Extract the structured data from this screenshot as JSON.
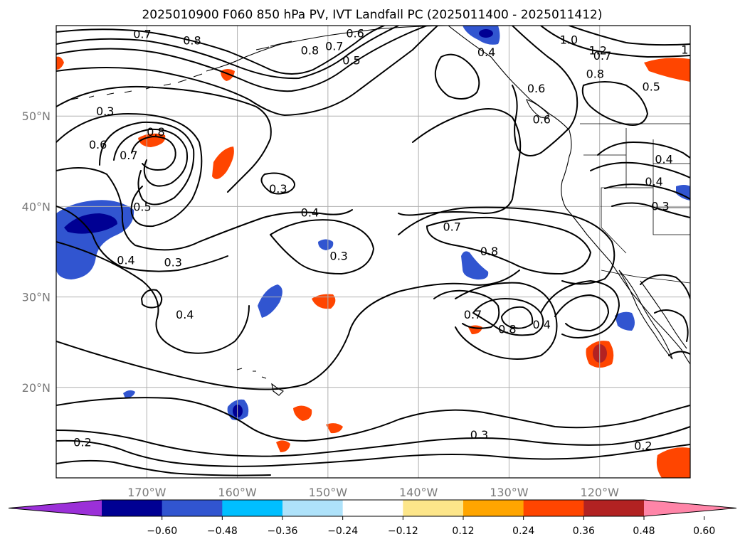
{
  "title": "2025010900 F060 850 hPa PV, IVT Landfall PC (2025011400 - 2025011412)",
  "map": {
    "lon_ticks": [
      {
        "lon": -170,
        "label": "170°W"
      },
      {
        "lon": -160,
        "label": "160°W"
      },
      {
        "lon": -150,
        "label": "150°W"
      },
      {
        "lon": -140,
        "label": "140°W"
      },
      {
        "lon": -130,
        "label": "130°W"
      },
      {
        "lon": -120,
        "label": "120°W"
      }
    ],
    "lat_ticks": [
      {
        "lat": 20,
        "label": "20°N"
      },
      {
        "lat": 30,
        "label": "30°N"
      },
      {
        "lat": 40,
        "label": "40°N"
      },
      {
        "lat": 50,
        "label": "50°N"
      }
    ],
    "extent": {
      "lon_min": -180,
      "lon_max": -110,
      "lat_min": 10,
      "lat_max": 60
    },
    "gridlines": true
  },
  "colorbar": {
    "ticks": [
      "−0.60",
      "−0.48",
      "−0.36",
      "−0.24",
      "−0.12",
      "0.12",
      "0.24",
      "0.36",
      "0.48",
      "0.60"
    ],
    "colors": [
      "#9b30d8",
      "#000093",
      "#3155d0",
      "#00bfff",
      "#aee2fa",
      "#ffffff",
      "#fde68a",
      "#ffa500",
      "#ff4500",
      "#b22222",
      "#ff85a8"
    ]
  },
  "contour_labels": [
    {
      "lon": -170.5,
      "lat": 59.0,
      "text": "0.7"
    },
    {
      "lon": -165.0,
      "lat": 58.3,
      "text": "0.8"
    },
    {
      "lon": -152.0,
      "lat": 57.2,
      "text": "0.8"
    },
    {
      "lon": -149.3,
      "lat": 57.7,
      "text": "0.7"
    },
    {
      "lon": -147.0,
      "lat": 59.1,
      "text": "0.6"
    },
    {
      "lon": -147.4,
      "lat": 56.1,
      "text": "0.5"
    },
    {
      "lon": -174.6,
      "lat": 50.5,
      "text": "0.3"
    },
    {
      "lon": -169.0,
      "lat": 48.2,
      "text": "0.8"
    },
    {
      "lon": -175.4,
      "lat": 46.8,
      "text": "0.6"
    },
    {
      "lon": -172.0,
      "lat": 45.6,
      "text": "0.7"
    },
    {
      "lon": -170.5,
      "lat": 39.9,
      "text": "0.5"
    },
    {
      "lon": -172.3,
      "lat": 34.0,
      "text": "0.4"
    },
    {
      "lon": -167.1,
      "lat": 33.8,
      "text": "0.3"
    },
    {
      "lon": -155.5,
      "lat": 41.9,
      "text": "0.3"
    },
    {
      "lon": -152.0,
      "lat": 39.3,
      "text": "0.4"
    },
    {
      "lon": -148.8,
      "lat": 34.5,
      "text": "0.3"
    },
    {
      "lon": -165.8,
      "lat": 28.0,
      "text": "0.4"
    },
    {
      "lon": -136.3,
      "lat": 37.7,
      "text": "0.7"
    },
    {
      "lon": -132.2,
      "lat": 35.0,
      "text": "0.8"
    },
    {
      "lon": -134.0,
      "lat": 28.0,
      "text": "0.7"
    },
    {
      "lon": -130.2,
      "lat": 26.4,
      "text": "0.8"
    },
    {
      "lon": -126.4,
      "lat": 26.9,
      "text": "0.4"
    },
    {
      "lon": -123.4,
      "lat": 58.4,
      "text": "1.0"
    },
    {
      "lon": -120.2,
      "lat": 57.2,
      "text": "1.2"
    },
    {
      "lon": -119.7,
      "lat": 56.6,
      "text": "0.7"
    },
    {
      "lon": -120.5,
      "lat": 54.6,
      "text": "0.8"
    },
    {
      "lon": -114.3,
      "lat": 53.2,
      "text": "0.5"
    },
    {
      "lon": -112.9,
      "lat": 45.2,
      "text": "0.4"
    },
    {
      "lon": -114.0,
      "lat": 42.7,
      "text": "0.4"
    },
    {
      "lon": -113.3,
      "lat": 40.0,
      "text": "0.3"
    },
    {
      "lon": -132.5,
      "lat": 57.0,
      "text": "0.4"
    },
    {
      "lon": -127.0,
      "lat": 53.0,
      "text": "0.6"
    },
    {
      "lon": -126.4,
      "lat": 49.6,
      "text": "0.6"
    },
    {
      "lon": -133.3,
      "lat": 14.7,
      "text": "0.3"
    },
    {
      "lon": -115.2,
      "lat": 13.5,
      "text": "0.2"
    },
    {
      "lon": -177.1,
      "lat": 13.9,
      "text": "0.2"
    },
    {
      "lon": -110.6,
      "lat": 57.3,
      "text": "1"
    }
  ]
}
